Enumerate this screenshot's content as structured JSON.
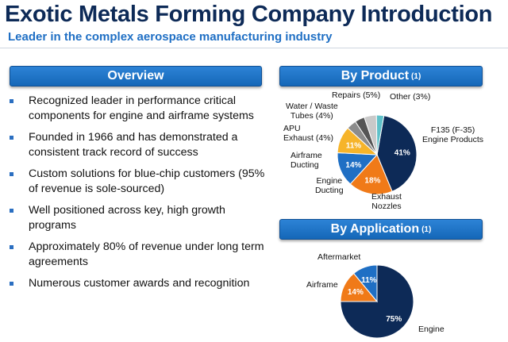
{
  "header": {
    "title": "Exotic Metals Forming Company Introduction",
    "subtitle": "Leader in the complex aerospace manufacturing industry"
  },
  "overview": {
    "heading": "Overview",
    "bullets": [
      "Recognized leader in performance critical components for engine and airframe systems",
      "Founded in 1966 and has demonstrated a consistent track record of success",
      "Custom solutions for blue-chip customers (95% of revenue is sole-sourced)",
      "Well positioned across key, high growth programs",
      "Approximately 80% of revenue under long term agreements",
      "Numerous customer awards and recognition"
    ]
  },
  "by_product": {
    "heading": "By Product",
    "footnote": "(1)"
  },
  "by_application": {
    "heading": "By Application",
    "footnote": "(1)"
  },
  "colors": {
    "navy": "#0d2a57",
    "blue": "#1f6fc4",
    "orange": "#f07a18",
    "yellow": "#f6b42a",
    "gray": "#8c8c8c",
    "silver": "#c9c9c9",
    "teal": "#5fc1c9"
  },
  "chart_data": [
    {
      "type": "pie",
      "title": "By Product",
      "slices": [
        {
          "label": "F135 (F-35)\nEngine Products",
          "value": 41,
          "data_label": "41%",
          "color": "#0d2a57"
        },
        {
          "label": "Exhaust\nNozzles",
          "value": 18,
          "data_label": "18%",
          "color": "#f07a18"
        },
        {
          "label": "Engine\nDucting",
          "value": 14,
          "data_label": "14%",
          "color": "#1f6fc4"
        },
        {
          "label": "Airframe\nDucting",
          "value": 11,
          "data_label": "11%",
          "color": "#f6b42a"
        },
        {
          "label": "APU\nExhaust (4%)",
          "value": 4,
          "data_label": "",
          "color": "#8c8c8c"
        },
        {
          "label": "Water / Waste\nTubes (4%)",
          "value": 4,
          "data_label": "",
          "color": "#555555"
        },
        {
          "label": "Repairs (5%)",
          "value": 5,
          "data_label": "",
          "color": "#c9c9c9"
        },
        {
          "label": "Other (3%)",
          "value": 3,
          "data_label": "",
          "color": "#5fc1c9"
        }
      ]
    },
    {
      "type": "pie",
      "title": "By Application",
      "slices": [
        {
          "label": "Engine",
          "value": 75,
          "data_label": "75%",
          "color": "#0d2a57"
        },
        {
          "label": "Airframe",
          "value": 14,
          "data_label": "14%",
          "color": "#f07a18"
        },
        {
          "label": "Aftermarket",
          "value": 11,
          "data_label": "11%",
          "color": "#1f6fc4"
        }
      ]
    }
  ]
}
